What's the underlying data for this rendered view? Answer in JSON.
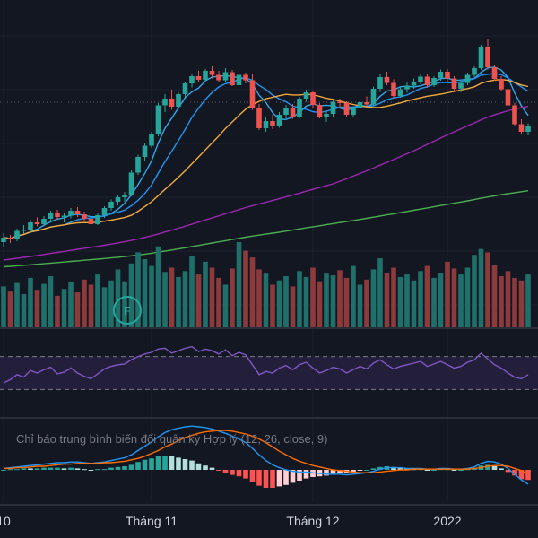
{
  "chart_data": {
    "type": "candlestick",
    "x_axis": {
      "ticks": [
        {
          "label": "10",
          "index": 0
        },
        {
          "label": "Tháng 11",
          "index": 22
        },
        {
          "label": "Tháng 12",
          "index": 46
        },
        {
          "label": "2022",
          "index": 66
        }
      ]
    },
    "candles": [
      [
        50.0,
        52.0,
        48.9,
        51.0
      ],
      [
        51.0,
        51.6,
        49.8,
        50.6
      ],
      [
        50.6,
        53.0,
        50.2,
        52.5
      ],
      [
        52.5,
        53.8,
        51.9,
        52.8
      ],
      [
        52.8,
        55.0,
        52.0,
        54.4
      ],
      [
        54.4,
        55.5,
        53.5,
        54.0
      ],
      [
        54.0,
        55.8,
        53.6,
        55.2
      ],
      [
        55.2,
        57.0,
        54.6,
        56.4
      ],
      [
        56.4,
        57.2,
        55.0,
        55.6
      ],
      [
        55.6,
        56.5,
        54.4,
        55.9
      ],
      [
        55.9,
        57.6,
        55.3,
        57.0
      ],
      [
        57.0,
        57.8,
        55.6,
        56.2
      ],
      [
        56.2,
        56.8,
        54.8,
        55.2
      ],
      [
        55.2,
        56.0,
        53.5,
        54.0
      ],
      [
        54.0,
        56.5,
        53.8,
        56.0
      ],
      [
        56.0,
        58.0,
        55.4,
        57.6
      ],
      [
        57.6,
        59.5,
        57.0,
        59.0
      ],
      [
        59.0,
        60.5,
        58.2,
        60.0
      ],
      [
        60.0,
        61.2,
        59.0,
        60.6
      ],
      [
        60.6,
        66.0,
        60.2,
        65.5
      ],
      [
        65.5,
        69.5,
        65.0,
        69.0
      ],
      [
        69.0,
        72.0,
        68.2,
        71.5
      ],
      [
        71.5,
        74.6,
        71.0,
        74.0
      ],
      [
        74.0,
        81.0,
        73.6,
        80.5
      ],
      [
        80.5,
        83.0,
        79.0,
        82.0
      ],
      [
        82.0,
        84.0,
        79.5,
        80.2
      ],
      [
        80.2,
        83.5,
        79.8,
        83.0
      ],
      [
        83.0,
        85.8,
        82.4,
        85.4
      ],
      [
        85.4,
        87.6,
        84.5,
        87.0
      ],
      [
        87.0,
        88.2,
        85.8,
        86.2
      ],
      [
        86.2,
        88.6,
        85.8,
        88.2
      ],
      [
        88.2,
        89.2,
        86.5,
        87.3
      ],
      [
        87.3,
        88.2,
        85.8,
        86.1
      ],
      [
        86.1,
        88.8,
        85.7,
        87.9
      ],
      [
        87.9,
        88.4,
        84.8,
        85.0
      ],
      [
        85.0,
        87.6,
        84.6,
        87.3
      ],
      [
        87.3,
        87.8,
        85.4,
        86.1
      ],
      [
        86.1,
        87.4,
        79.5,
        80.0
      ],
      [
        80.0,
        80.8,
        75.0,
        75.4
      ],
      [
        75.4,
        77.8,
        74.6,
        77.0
      ],
      [
        77.0,
        78.4,
        75.2,
        76.0
      ],
      [
        76.0,
        79.0,
        75.5,
        78.4
      ],
      [
        78.4,
        80.6,
        77.6,
        80.0
      ],
      [
        80.0,
        80.8,
        77.5,
        78.0
      ],
      [
        78.0,
        82.4,
        77.6,
        82.0
      ],
      [
        82.0,
        84.0,
        81.3,
        83.4
      ],
      [
        83.4,
        83.8,
        80.0,
        80.6
      ],
      [
        80.6,
        81.0,
        77.6,
        78.0
      ],
      [
        78.0,
        79.3,
        76.8,
        78.6
      ],
      [
        78.6,
        81.8,
        78.0,
        81.3
      ],
      [
        81.3,
        82.0,
        80.0,
        81.0
      ],
      [
        81.0,
        81.4,
        78.0,
        78.4
      ],
      [
        78.4,
        80.3,
        78.0,
        79.8
      ],
      [
        79.8,
        81.7,
        79.2,
        81.2
      ],
      [
        81.2,
        82.5,
        80.3,
        80.7
      ],
      [
        80.7,
        84.7,
        80.4,
        84.2
      ],
      [
        84.2,
        87.4,
        83.5,
        86.8
      ],
      [
        86.8,
        88.0,
        85.0,
        85.5
      ],
      [
        85.5,
        86.3,
        82.0,
        82.6
      ],
      [
        82.6,
        84.6,
        82.2,
        84.1
      ],
      [
        84.1,
        85.6,
        83.3,
        84.9
      ],
      [
        84.9,
        86.5,
        84.2,
        85.8
      ],
      [
        85.8,
        87.6,
        85.2,
        86.9
      ],
      [
        86.9,
        87.4,
        84.4,
        85.0
      ],
      [
        85.0,
        87.0,
        84.6,
        86.6
      ],
      [
        86.6,
        88.5,
        86.0,
        88.0
      ],
      [
        88.0,
        88.6,
        85.8,
        86.5
      ],
      [
        86.5,
        87.0,
        83.8,
        84.2
      ],
      [
        84.2,
        86.0,
        83.5,
        85.5
      ],
      [
        85.5,
        87.8,
        85.0,
        87.3
      ],
      [
        87.3,
        89.2,
        86.6,
        88.8
      ],
      [
        88.8,
        94.0,
        88.4,
        93.6
      ],
      [
        93.6,
        95.2,
        88.5,
        89.0
      ],
      [
        89.0,
        89.6,
        86.0,
        86.4
      ],
      [
        86.4,
        87.0,
        83.6,
        84.1
      ],
      [
        84.1,
        85.0,
        80.0,
        80.5
      ],
      [
        80.5,
        81.0,
        75.8,
        76.3
      ],
      [
        76.3,
        77.4,
        74.0,
        74.6
      ],
      [
        74.6,
        76.5,
        73.8,
        75.8
      ]
    ],
    "moving_averages": [
      {
        "color": "#2fa8ea",
        "period": 5
      },
      {
        "color": "#2196f3",
        "period": 10
      },
      {
        "color": "#f2a93b",
        "period": 20
      },
      {
        "color": "#9c27b0",
        "period": 50
      },
      {
        "color": "#4caf50",
        "period": 100
      }
    ],
    "volume": [
      48,
      42,
      52,
      39,
      58,
      44,
      51,
      60,
      37,
      45,
      53,
      41,
      56,
      50,
      62,
      47,
      55,
      68,
      54,
      75,
      88,
      80,
      72,
      95,
      65,
      70,
      59,
      66,
      84,
      62,
      77,
      70,
      58,
      50,
      69,
      100,
      90,
      82,
      68,
      63,
      50,
      55,
      60,
      48,
      66,
      59,
      70,
      54,
      63,
      61,
      67,
      58,
      72,
      50,
      56,
      68,
      81,
      64,
      70,
      59,
      62,
      55,
      66,
      72,
      58,
      64,
      77,
      69,
      62,
      70,
      85,
      92,
      88,
      73,
      60,
      66,
      58,
      55,
      62
    ],
    "signal_marker": {
      "label": "F",
      "color": "#26a69a"
    },
    "rsi": {
      "upper": 70,
      "lower": 30,
      "values": [
        38,
        42,
        48,
        45,
        53,
        50,
        54,
        57,
        49,
        51,
        56,
        50,
        46,
        43,
        49,
        55,
        58,
        60,
        61,
        66,
        70,
        73,
        75,
        79,
        80,
        74,
        77,
        80,
        82,
        76,
        79,
        77,
        73,
        78,
        71,
        75,
        72,
        60,
        48,
        52,
        50,
        56,
        59,
        54,
        60,
        63,
        56,
        50,
        53,
        57,
        55,
        50,
        54,
        58,
        55,
        62,
        66,
        60,
        55,
        58,
        60,
        62,
        64,
        58,
        61,
        64,
        60,
        56,
        58,
        63,
        66,
        74,
        67,
        60,
        56,
        50,
        45,
        43,
        48
      ]
    },
    "macd": {
      "title": "Chỉ báo trung bình biến đổi quân kỳ Hợp lý (12, 26, close, 9)",
      "macd": [
        0.2,
        0.3,
        0.4,
        0.5,
        0.6,
        0.7,
        0.8,
        0.9,
        1.0,
        1.0,
        1.1,
        1.1,
        1.0,
        0.9,
        1.0,
        1.1,
        1.3,
        1.5,
        1.7,
        2.1,
        2.7,
        3.3,
        3.9,
        4.6,
        5.2,
        5.6,
        5.8,
        6.0,
        6.1,
        6.0,
        5.9,
        5.7,
        5.4,
        5.1,
        4.7,
        4.3,
        3.8,
        3.0,
        2.1,
        1.3,
        0.7,
        0.3,
        0.0,
        -0.2,
        -0.3,
        -0.3,
        -0.4,
        -0.5,
        -0.6,
        -0.6,
        -0.6,
        -0.7,
        -0.6,
        -0.5,
        -0.4,
        -0.2,
        0.1,
        0.3,
        0.3,
        0.3,
        0.2,
        0.2,
        0.2,
        0.1,
        0.1,
        0.2,
        0.2,
        0.1,
        0.1,
        0.2,
        0.4,
        0.9,
        1.2,
        1.1,
        0.8,
        0.2,
        -0.6,
        -1.4,
        -2.0
      ],
      "signal": [
        0.2,
        0.2,
        0.3,
        0.3,
        0.4,
        0.5,
        0.5,
        0.6,
        0.7,
        0.8,
        0.8,
        0.9,
        0.9,
        0.9,
        0.9,
        1.0,
        1.0,
        1.1,
        1.2,
        1.4,
        1.6,
        1.9,
        2.3,
        2.7,
        3.2,
        3.6,
        4.1,
        4.5,
        4.8,
        5.1,
        5.3,
        5.4,
        5.5,
        5.5,
        5.4,
        5.2,
        5.0,
        4.7,
        4.3,
        3.8,
        3.2,
        2.6,
        2.1,
        1.6,
        1.2,
        0.9,
        0.6,
        0.4,
        0.2,
        0.0,
        -0.1,
        -0.2,
        -0.3,
        -0.4,
        -0.4,
        -0.4,
        -0.3,
        -0.2,
        -0.1,
        0.0,
        0.0,
        0.1,
        0.1,
        0.1,
        0.1,
        0.1,
        0.1,
        0.1,
        0.1,
        0.1,
        0.2,
        0.3,
        0.5,
        0.6,
        0.6,
        0.5,
        0.2,
        -0.1,
        -0.6
      ]
    }
  },
  "colors": {
    "background": "#131722",
    "grid": "#1e222d",
    "up": "#26a69a",
    "down": "#ef5350",
    "volume_up": "#1f6f6a",
    "volume_down": "#8c3a3b",
    "rsi": "#7e57c2",
    "rsi_band": "#2a2343",
    "macd": "#2196f3",
    "signal": "#ff6d00"
  }
}
